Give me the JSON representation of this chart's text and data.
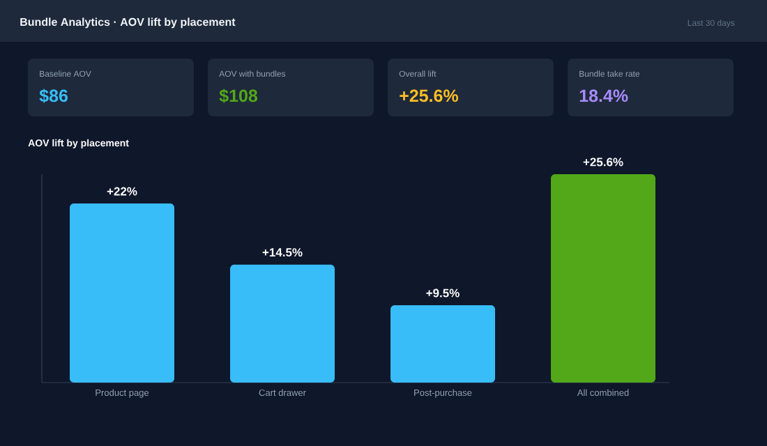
{
  "chart_data": [
    {
      "type": "other",
      "title": "Bundle Analytics · AOV lift by placement",
      "subtitle": "Last 30 days",
      "categories": [
        "Baseline AOV",
        "AOV with bundles",
        "Overall lift",
        "Bundle take rate"
      ],
      "value_labels": [
        "$86",
        "$108",
        "+25.6%",
        "18.4%"
      ]
    },
    {
      "type": "bar",
      "title": "AOV lift by placement",
      "categories": [
        "Product page",
        "Cart drawer",
        "Post-purchase",
        "All combined"
      ],
      "values": [
        22,
        14.5,
        9.5,
        25.6
      ],
      "value_labels": [
        "+22%",
        "+14.5%",
        "+9.5%",
        "+25.6%"
      ],
      "colors": [
        "#38bdf8",
        "#38bdf8",
        "#38bdf8",
        "#52a818"
      ]
    }
  ]
}
